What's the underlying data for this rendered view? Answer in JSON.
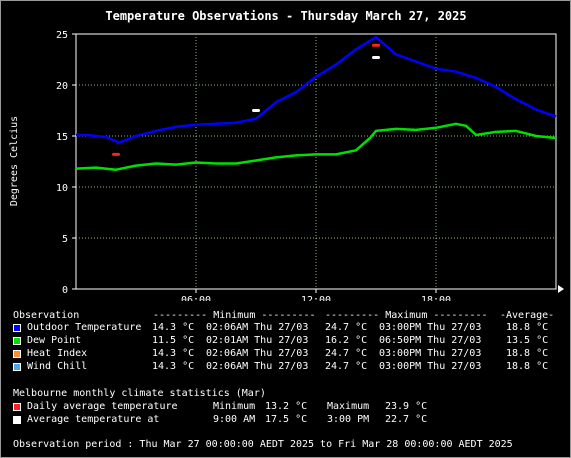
{
  "title": "Temperature Observations - Thursday March 27, 2025",
  "chart_data": {
    "type": "line",
    "ylabel": "Degrees Celcius",
    "xlabel": "",
    "ylim": [
      0,
      25
    ],
    "yticks": [
      "0",
      "5",
      "10",
      "15",
      "20",
      "25"
    ],
    "xlim": [
      0,
      24
    ],
    "xticks": [
      {
        "value": 6,
        "label": "06:00"
      },
      {
        "value": 12,
        "label": "12:00"
      },
      {
        "value": 18,
        "label": "18:00"
      }
    ],
    "grid": true,
    "series": [
      {
        "name": "Outdoor Temperature",
        "color": "#0000ff",
        "x": [
          0,
          0.5,
          1,
          1.5,
          2,
          2.1,
          3,
          4,
          5,
          6,
          7,
          8,
          9,
          9.5,
          10,
          11,
          12,
          13,
          14,
          15,
          16,
          17,
          18,
          19,
          20,
          21,
          22,
          23,
          24
        ],
        "y": [
          15.1,
          15.1,
          15.0,
          14.9,
          14.5,
          14.3,
          15.0,
          15.5,
          15.9,
          16.1,
          16.2,
          16.3,
          16.7,
          17.5,
          18.3,
          19.3,
          20.8,
          22.0,
          23.5,
          24.7,
          23.0,
          22.3,
          21.6,
          21.3,
          20.7,
          19.8,
          18.6,
          17.6,
          16.9
        ]
      },
      {
        "name": "Dew Point",
        "color": "#00e000",
        "x": [
          0,
          1,
          2,
          3,
          4,
          5,
          6,
          7,
          8,
          9,
          10,
          11,
          12,
          13,
          14,
          14.7,
          15,
          16,
          17,
          18,
          19,
          19.5,
          20,
          21,
          22,
          23,
          24
        ],
        "y": [
          11.8,
          11.9,
          11.7,
          12.1,
          12.3,
          12.2,
          12.4,
          12.3,
          12.3,
          12.6,
          12.9,
          13.1,
          13.2,
          13.2,
          13.6,
          14.8,
          15.5,
          15.7,
          15.6,
          15.8,
          16.2,
          16.0,
          15.1,
          15.4,
          15.5,
          15.0,
          14.8
        ]
      }
    ],
    "markers": [
      {
        "name": "Daily average temperature",
        "color": "#ff2020",
        "points": [
          {
            "x": 2.0,
            "y": 13.2
          },
          {
            "x": 15.0,
            "y": 23.9
          }
        ]
      },
      {
        "name": "Average temperature at",
        "color": "#ffffff",
        "points": [
          {
            "x": 9.0,
            "y": 17.5
          },
          {
            "x": 15.0,
            "y": 22.7
          }
        ]
      }
    ]
  },
  "legend": {
    "header": {
      "label": "Observation",
      "minimum": "--------- Minimum ---------",
      "maximum": "--------- Maximum ---------",
      "average": "-Average-"
    },
    "rows": [
      {
        "color": "#0000ff",
        "label": "Outdoor Temperature",
        "min": "14.3 °C",
        "min_time": "02:06AM Thu 27/03",
        "max": "24.7 °C",
        "max_time": "03:00PM Thu 27/03",
        "avg": "18.8 °C"
      },
      {
        "color": "#00e000",
        "label": "Dew Point",
        "min": "11.5 °C",
        "min_time": "02:01AM Thu 27/03",
        "max": "16.2 °C",
        "max_time": "06:50PM Thu 27/03",
        "avg": "13.5 °C"
      },
      {
        "color": "#ff8c30",
        "label": "Heat Index",
        "min": "14.3 °C",
        "min_time": "02:06AM Thu 27/03",
        "max": "24.7 °C",
        "max_time": "03:00PM Thu 27/03",
        "avg": "18.8 °C"
      },
      {
        "color": "#48a8f0",
        "label": "Wind Chill",
        "min": "14.3 °C",
        "min_time": "02:06AM Thu 27/03",
        "max": "24.7 °C",
        "max_time": "03:00PM Thu 27/03",
        "avg": "18.8 °C"
      }
    ]
  },
  "climate": {
    "title": "Melbourne monthly climate statistics (Mar)",
    "rows": [
      {
        "color": "#ff2020",
        "label": "Daily average temperature",
        "c1": "Minimum",
        "v1": "13.2 °C",
        "c2": "Maximum",
        "v2": "23.9 °C"
      },
      {
        "color": "#ffffff",
        "label": "Average temperature at",
        "c1": "9:00 AM",
        "v1": "17.5 °C",
        "c2": "3:00 PM",
        "v2": "22.7 °C"
      }
    ]
  },
  "period": "Observation period : Thu Mar 27 00:00:00 AEDT 2025 to Fri Mar 28 00:00:00 AEDT 2025"
}
